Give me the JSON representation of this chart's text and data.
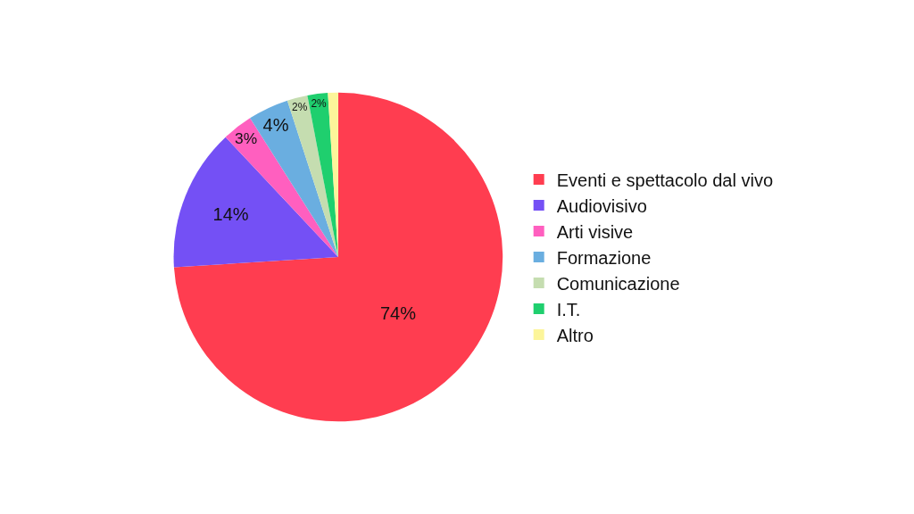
{
  "chart_data": {
    "type": "pie",
    "categories": [
      "Eventi e spettacolo dal vivo",
      "Audiovisivo",
      "Arti visive",
      "Formazione",
      "Comunicazione",
      "I.T.",
      "Altro"
    ],
    "values": [
      74,
      14,
      3,
      4,
      2,
      2,
      1
    ],
    "value_labels": [
      "74%",
      "14%",
      "3%",
      "4%",
      "2%",
      "2%",
      null
    ],
    "colors": [
      "#ff3d50",
      "#7450f5",
      "#ff5fbf",
      "#6aaee0",
      "#c5ddb0",
      "#1fcf6e",
      "#fcf59a"
    ],
    "legend": "right"
  }
}
